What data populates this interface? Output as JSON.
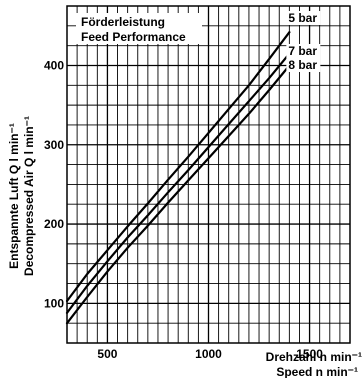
{
  "chart_data": {
    "type": "line",
    "title": "Förderleistung",
    "subtitle": "Feed Performance",
    "ylabel": [
      "Entspannte Luft Q l min⁻¹",
      "Decompressed Air Q l min⁻¹"
    ],
    "xlabel": [
      "Drehzahl n min⁻¹",
      "Speed n min⁻¹"
    ],
    "xlim": [
      300,
      1700
    ],
    "ylim": [
      50,
      475
    ],
    "xticks": [
      500,
      1000,
      1500
    ],
    "yticks": [
      100,
      200,
      300,
      400
    ],
    "grid": true,
    "series": [
      {
        "name": "5 bar",
        "x": [
          300,
          400,
          500,
          600,
          700,
          800,
          900,
          1000,
          1100,
          1200,
          1300,
          1400
        ],
        "values": [
          103,
          137,
          167,
          197,
          226,
          256,
          285,
          315,
          345,
          375,
          408,
          442
        ]
      },
      {
        "name": "7 bar",
        "x": [
          300,
          400,
          500,
          600,
          700,
          800,
          900,
          1000,
          1100,
          1200,
          1300,
          1400
        ],
        "values": [
          88,
          122,
          153,
          183,
          211,
          240,
          268,
          297,
          326,
          355,
          384,
          415
        ]
      },
      {
        "name": "8 bar",
        "x": [
          300,
          400,
          500,
          600,
          700,
          800,
          900,
          1000,
          1100,
          1200,
          1300,
          1400
        ],
        "values": [
          75,
          108,
          140,
          170,
          198,
          227,
          255,
          283,
          311,
          339,
          369,
          400
        ]
      }
    ]
  }
}
